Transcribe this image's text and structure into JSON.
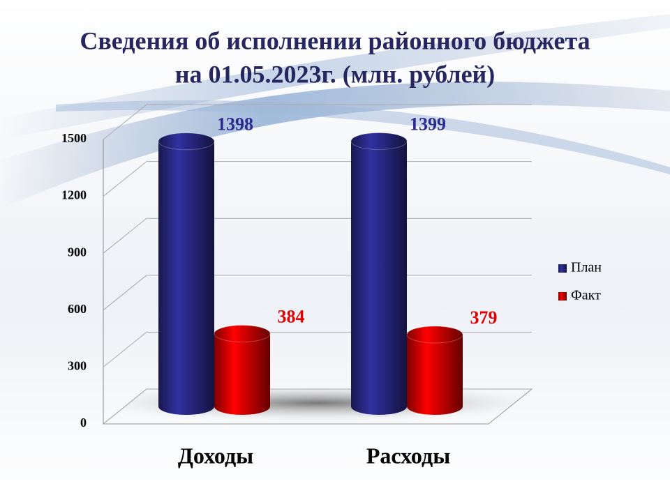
{
  "chart_data": {
    "type": "bar",
    "title": [
      "Сведения об исполнении районного бюджета",
      "на 01.05.2023г. (млн. рублей)"
    ],
    "categories": [
      "Доходы",
      "Расходы"
    ],
    "series": [
      {
        "name": "План",
        "color": "#2b2b8c",
        "values": [
          1398,
          1399
        ]
      },
      {
        "name": "Факт",
        "color": "#e00000",
        "values": [
          384,
          379
        ]
      }
    ],
    "ylim": [
      0,
      1500
    ],
    "yticks": [
      0,
      300,
      600,
      900,
      1200,
      1500
    ],
    "grid": true,
    "legend": "right"
  }
}
